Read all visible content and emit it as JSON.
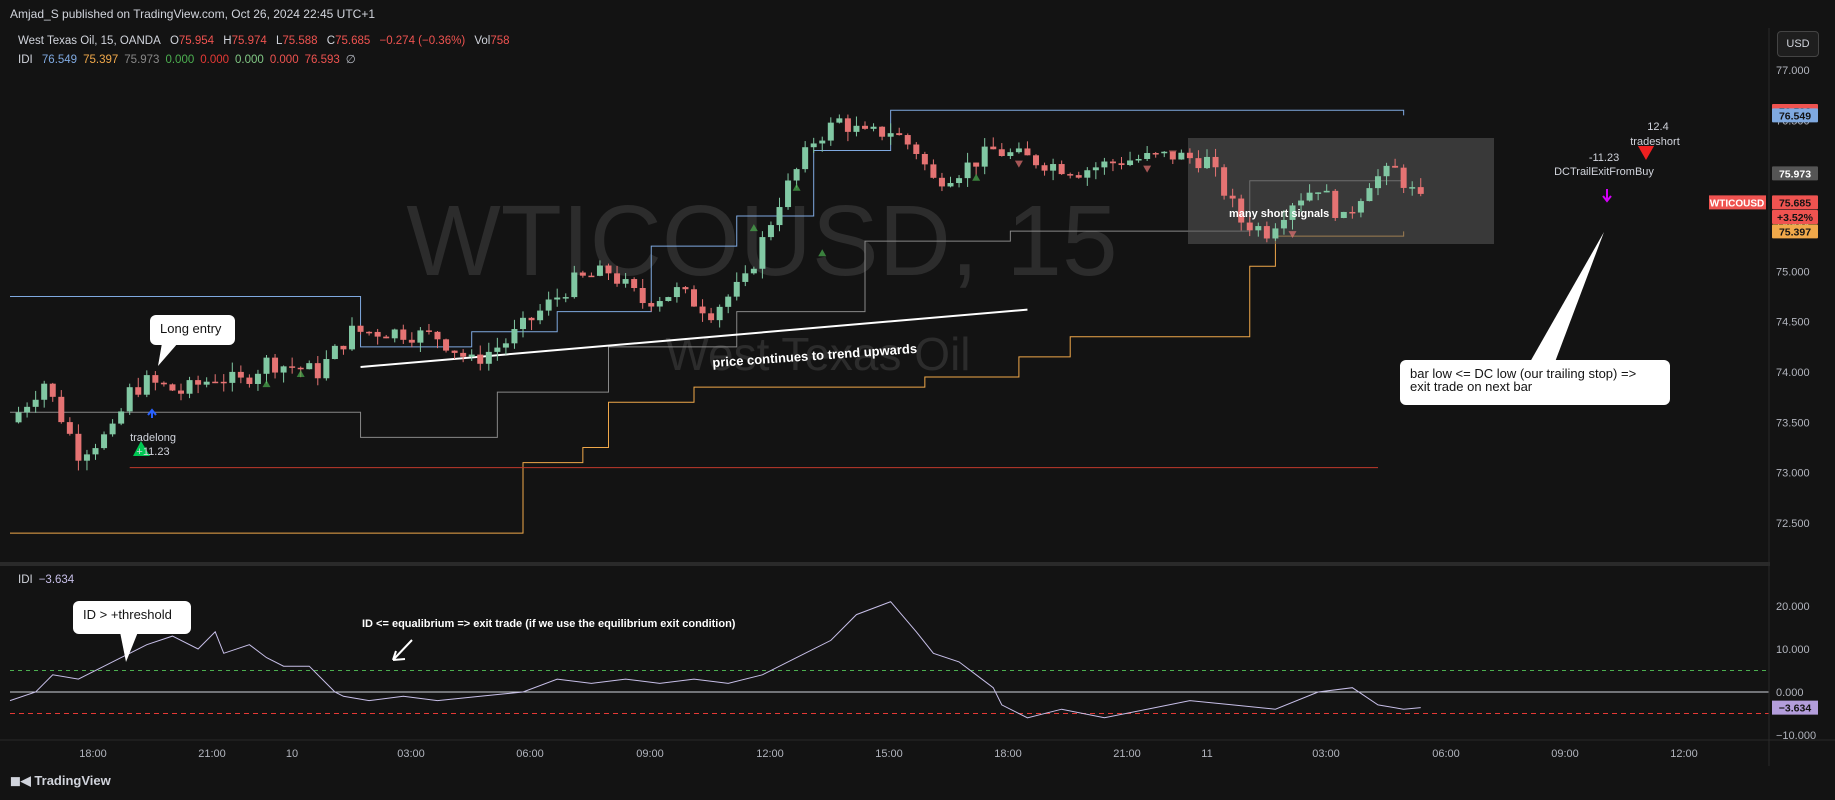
{
  "header": {
    "published": "Amjad_S published on TradingView.com, Oct 26, 2024 22:45 UTC+1"
  },
  "legend": {
    "symbol": "West Texas Oil, 15, OANDA",
    "o_label": "O",
    "o": "75.954",
    "h_label": "H",
    "h": "75.974",
    "l_label": "L",
    "l": "75.588",
    "c_label": "C",
    "c": "75.685",
    "change": "−0.274 (−0.36%)",
    "vol_label": "Vol",
    "vol": "758",
    "idi_label": "IDI",
    "idi_values": [
      "76.549",
      "75.397",
      "75.973",
      "0.000",
      "0.000",
      "0.000",
      "0.000",
      "76.593",
      "∅"
    ],
    "idi_colors": [
      "#7fa9e0",
      "#f0a84a",
      "#888888",
      "#4caf50",
      "#e53935",
      "#81c784",
      "#ef5350",
      "#ef5350",
      "#b2b5be"
    ]
  },
  "currency_button": "USD",
  "watermark": {
    "line1": "WTICOUSD, 15",
    "line2": "West Texas Oil"
  },
  "price_axis": {
    "ticks": [
      "77.000",
      "76.500",
      "76.000",
      "75.500",
      "75.000",
      "74.500",
      "74.000",
      "73.500",
      "73.000",
      "72.500"
    ]
  },
  "price_badges": [
    {
      "text": "76.593",
      "color": "#ef5350"
    },
    {
      "text": "76.549",
      "color": "#7fa9e0"
    },
    {
      "text": "75.973",
      "color": "#555555"
    },
    {
      "text": "75.685",
      "color": "#ef5350"
    },
    {
      "text": "+3.52%",
      "color": "#ef5350"
    },
    {
      "text": "75.397",
      "color": "#f0a84a"
    }
  ],
  "symbol_badge": "WTICOUSD",
  "osc_panel": {
    "label": "IDI",
    "value": "−3.634",
    "ticks": [
      "20.000",
      "10.000",
      "0.000",
      "−10.000"
    ],
    "badge": "−3.634"
  },
  "time_axis": {
    "ticks": [
      "18:00",
      "21:00",
      "10",
      "03:00",
      "06:00",
      "09:00",
      "12:00",
      "15:00",
      "18:00",
      "21:00",
      "11",
      "03:00",
      "06:00",
      "09:00",
      "12:00"
    ]
  },
  "annotations": {
    "long_entry": "Long entry",
    "trend": "price continues to trend upwards",
    "many_short": "many short signals",
    "bar_low_1": "bar low <= DC low (our trailing stop) =>",
    "bar_low_2": "exit trade on next bar",
    "id_threshold": "ID > +threshold",
    "id_equilibrium": "ID <= equalibrium => exit trade (if we use the equilibrium exit condition)",
    "tradelong": "tradelong",
    "tradelong_val": "+11.23",
    "tradeshort": "tradeshort",
    "tradeshort_val": "12.4",
    "dc_exit": "DCTrailExitFromBuy",
    "dc_exit_val": "-11.23"
  },
  "brand": "TradingView",
  "colors": {
    "up": "#81c8a3",
    "down": "#e57373",
    "dc_upper": "#7fa9e0",
    "dc_lower": "#f0a84a",
    "mid": "#888888",
    "osc": "#c7bfe8"
  },
  "chart_data": {
    "type": "candlestick",
    "symbol": "WTICOUSD",
    "ylim": [
      72.2,
      77.3
    ],
    "osc_ylim": [
      -10,
      25
    ],
    "x_labels": [
      "18:00",
      "21:00",
      "10",
      "03:00",
      "06:00",
      "09:00",
      "12:00",
      "15:00",
      "18:00",
      "21:00",
      "11",
      "03:00",
      "06:00",
      "09:00",
      "12:00"
    ],
    "close_path": [
      [
        0,
        73.5
      ],
      [
        4,
        73.9
      ],
      [
        8,
        73.2
      ],
      [
        12,
        73.4
      ],
      [
        14,
        73.8
      ],
      [
        16,
        73.9
      ],
      [
        20,
        73.8
      ],
      [
        24,
        73.95
      ],
      [
        27,
        73.9
      ],
      [
        30,
        74.1
      ],
      [
        33,
        74.05
      ],
      [
        36,
        74.0
      ],
      [
        40,
        74.4
      ],
      [
        45,
        74.4
      ],
      [
        50,
        74.35
      ],
      [
        54,
        74.1
      ],
      [
        58,
        74.3
      ],
      [
        62,
        74.6
      ],
      [
        66,
        74.9
      ],
      [
        70,
        75.0
      ],
      [
        74,
        74.7
      ],
      [
        78,
        74.8
      ],
      [
        82,
        74.6
      ],
      [
        86,
        74.9
      ],
      [
        90,
        75.7
      ],
      [
        94,
        76.3
      ],
      [
        97,
        76.5
      ],
      [
        100,
        76.35
      ],
      [
        103,
        76.4
      ],
      [
        106,
        76.2
      ],
      [
        108,
        75.9
      ],
      [
        111,
        76.0
      ],
      [
        115,
        76.2
      ],
      [
        120,
        76.1
      ],
      [
        125,
        76.0
      ],
      [
        130,
        76.1
      ],
      [
        136,
        76.15
      ],
      [
        140,
        76.1
      ],
      [
        142,
        75.8
      ],
      [
        144,
        75.5
      ],
      [
        147,
        75.4
      ],
      [
        150,
        75.7
      ],
      [
        153,
        75.85
      ],
      [
        156,
        75.5
      ],
      [
        159,
        75.9
      ],
      [
        162,
        76.0
      ],
      [
        165,
        75.685
      ]
    ],
    "trend_line": [
      [
        41,
        74.05
      ],
      [
        119,
        74.62
      ]
    ],
    "entry_level": 73.05,
    "dc_upper": [
      [
        0,
        74.75
      ],
      [
        40,
        74.75
      ],
      [
        41,
        74.25
      ],
      [
        54,
        74.4
      ],
      [
        64,
        74.6
      ],
      [
        75,
        75.25
      ],
      [
        85,
        75.55
      ],
      [
        94,
        76.2
      ],
      [
        103,
        76.6
      ],
      [
        160,
        76.6
      ],
      [
        163,
        76.549
      ]
    ],
    "dc_mid": [
      [
        0,
        73.6
      ],
      [
        40,
        73.6
      ],
      [
        41,
        73.35
      ],
      [
        57,
        73.8
      ],
      [
        70,
        74.25
      ],
      [
        85,
        74.6
      ],
      [
        100,
        75.3
      ],
      [
        117,
        75.4
      ],
      [
        145,
        75.9
      ],
      [
        163,
        75.973
      ]
    ],
    "dc_lower": [
      [
        0,
        72.4
      ],
      [
        57,
        72.4
      ],
      [
        60,
        73.1
      ],
      [
        67,
        73.25
      ],
      [
        70,
        73.7
      ],
      [
        80,
        73.85
      ],
      [
        107,
        73.95
      ],
      [
        118,
        74.15
      ],
      [
        124,
        74.35
      ],
      [
        145,
        75.05
      ],
      [
        148,
        75.35
      ],
      [
        163,
        75.397
      ]
    ],
    "idi_series": [
      [
        0,
        -2
      ],
      [
        3,
        0
      ],
      [
        5,
        4
      ],
      [
        8,
        3
      ],
      [
        11,
        6
      ],
      [
        13,
        8
      ],
      [
        16,
        11
      ],
      [
        19,
        13
      ],
      [
        22,
        10
      ],
      [
        24,
        14
      ],
      [
        25,
        9
      ],
      [
        28,
        11
      ],
      [
        30,
        8
      ],
      [
        32,
        6
      ],
      [
        35,
        6
      ],
      [
        37,
        2
      ],
      [
        38,
        0
      ],
      [
        39,
        -1
      ],
      [
        42,
        -2
      ],
      [
        46,
        -1
      ],
      [
        50,
        -2
      ],
      [
        55,
        -1
      ],
      [
        60,
        0
      ],
      [
        64,
        3
      ],
      [
        68,
        2
      ],
      [
        72,
        3
      ],
      [
        76,
        2
      ],
      [
        80,
        3
      ],
      [
        84,
        2
      ],
      [
        88,
        4
      ],
      [
        92,
        8
      ],
      [
        96,
        12
      ],
      [
        99,
        18
      ],
      [
        103,
        21
      ],
      [
        106,
        14
      ],
      [
        108,
        9
      ],
      [
        111,
        7
      ],
      [
        113,
        4
      ],
      [
        115,
        1
      ],
      [
        116,
        -3
      ],
      [
        119,
        -6
      ],
      [
        123,
        -4
      ],
      [
        128,
        -6
      ],
      [
        133,
        -4
      ],
      [
        138,
        -2
      ],
      [
        143,
        -3
      ],
      [
        148,
        -4
      ],
      [
        153,
        0
      ],
      [
        157,
        1
      ],
      [
        160,
        -3
      ],
      [
        163,
        -4
      ],
      [
        165,
        -3.634
      ]
    ],
    "idi_threshold": 5,
    "idi_lower": -5
  }
}
